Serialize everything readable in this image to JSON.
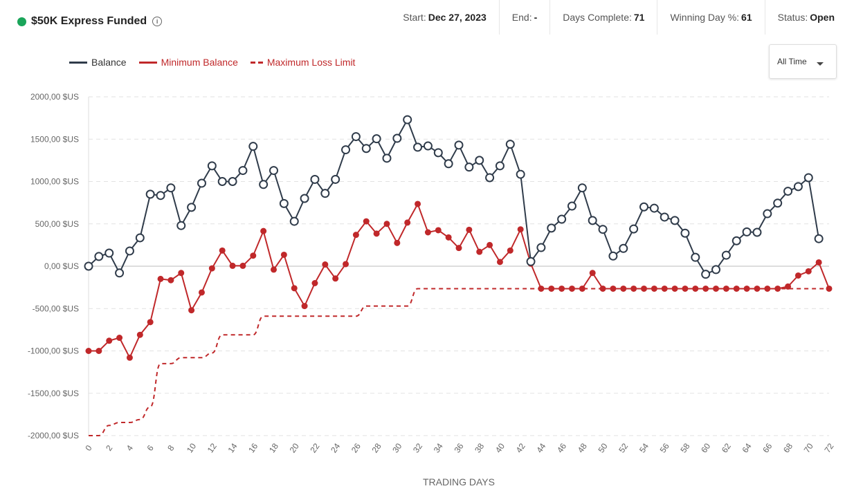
{
  "header": {
    "title": "$50K Express Funded",
    "info_icon": "info-icon",
    "stats": [
      {
        "label": "Start:",
        "value": "Dec 27, 2023"
      },
      {
        "label": "End:",
        "value": "-"
      },
      {
        "label": "Days Complete:",
        "value": "71"
      },
      {
        "label": "Winning Day %:",
        "value": "61"
      },
      {
        "label": "Status:",
        "value": "Open"
      }
    ],
    "status_color": "#1aa55a"
  },
  "range_select": {
    "selected": "All Time"
  },
  "chart_data": {
    "type": "line",
    "xlabel": "TRADING DAYS",
    "ylabel": "",
    "ylim": [
      -2000,
      2000
    ],
    "xlim": [
      0,
      72
    ],
    "yticks": [
      2000,
      1500,
      1000,
      500,
      0,
      -500,
      -1000,
      -1500,
      -2000
    ],
    "ytick_labels": [
      "2000,00 $US",
      "1500,00 $US",
      "1000,00 $US",
      "500,00 $US",
      "0,00 $US",
      "-500,00 $US",
      "-1000,00 $US",
      "-1500,00 $US",
      "-2000,00 $US"
    ],
    "xticks": [
      0,
      2,
      4,
      6,
      8,
      10,
      12,
      14,
      16,
      18,
      20,
      22,
      24,
      26,
      28,
      30,
      32,
      34,
      36,
      38,
      40,
      42,
      44,
      46,
      48,
      50,
      52,
      54,
      56,
      58,
      60,
      62,
      64,
      66,
      68,
      70,
      72
    ],
    "xtick_labels": [
      "0",
      "2",
      "4",
      "6",
      "8",
      "10",
      "12",
      "14",
      "16",
      "18",
      "20",
      "22",
      "24",
      "26",
      "28",
      "30",
      "32",
      "34",
      "36",
      "38",
      "40",
      "42",
      "44",
      "46",
      "48",
      "50",
      "52",
      "54",
      "56",
      "58",
      "60",
      "62",
      "64",
      "66",
      "68",
      "70",
      "72"
    ],
    "grid": true,
    "legend_position": "top-left",
    "series": [
      {
        "name": "Balance",
        "color": "#2f3b4a",
        "style": "solid-open-markers",
        "x": [
          0,
          1,
          2,
          3,
          4,
          5,
          6,
          7,
          8,
          9,
          10,
          11,
          12,
          13,
          14,
          15,
          16,
          17,
          18,
          19,
          20,
          21,
          22,
          23,
          24,
          25,
          26,
          27,
          28,
          29,
          30,
          31,
          32,
          33,
          34,
          35,
          36,
          37,
          38,
          39,
          40,
          41,
          42,
          43,
          44,
          45,
          46,
          47,
          48,
          49,
          50,
          51,
          52,
          53,
          54,
          55,
          56,
          57,
          58,
          59,
          60,
          61,
          62,
          63,
          64,
          65,
          66,
          67,
          68,
          69,
          70,
          71
        ],
        "values": [
          0,
          115,
          155,
          -80,
          180,
          335,
          850,
          835,
          925,
          480,
          695,
          980,
          1185,
          1000,
          1000,
          1130,
          1415,
          965,
          1130,
          740,
          530,
          800,
          1025,
          860,
          1025,
          1375,
          1530,
          1390,
          1505,
          1275,
          1510,
          1730,
          1405,
          1420,
          1340,
          1210,
          1430,
          1170,
          1250,
          1045,
          1185,
          1440,
          1085,
          55,
          220,
          450,
          555,
          710,
          925,
          540,
          435,
          120,
          210,
          440,
          700,
          685,
          580,
          540,
          390,
          105,
          -95,
          -40,
          130,
          300,
          405,
          400,
          620,
          745,
          885,
          940,
          1045,
          325
        ]
      },
      {
        "name": "Minimum Balance",
        "color": "#c0282a",
        "style": "solid-filled-markers",
        "x": [
          0,
          1,
          2,
          3,
          4,
          5,
          6,
          7,
          8,
          9,
          10,
          11,
          12,
          13,
          14,
          15,
          16,
          17,
          18,
          19,
          20,
          21,
          22,
          23,
          24,
          25,
          26,
          27,
          28,
          29,
          30,
          31,
          32,
          33,
          34,
          35,
          36,
          37,
          38,
          39,
          40,
          41,
          42,
          43,
          44,
          45,
          46,
          47,
          48,
          49,
          50,
          51,
          52,
          53,
          54,
          55,
          56,
          57,
          58,
          59,
          60,
          61,
          62,
          63,
          64,
          65,
          66,
          67,
          68,
          69,
          70,
          71,
          72
        ],
        "values": [
          -1000,
          -1000,
          -880,
          -845,
          -1080,
          -810,
          -660,
          -150,
          -165,
          -80,
          -520,
          -310,
          -25,
          185,
          5,
          5,
          125,
          415,
          -40,
          135,
          -260,
          -470,
          -200,
          20,
          -145,
          25,
          370,
          530,
          385,
          500,
          275,
          515,
          735,
          400,
          425,
          340,
          215,
          430,
          170,
          250,
          50,
          185,
          435,
          30,
          -265,
          -265,
          -265,
          -265,
          -265,
          -80,
          -265,
          -265,
          -265,
          -265,
          -265,
          -265,
          -265,
          -265,
          -265,
          -265,
          -265,
          -265,
          -265,
          -265,
          -265,
          -265,
          -265,
          -265,
          -240,
          -110,
          -60,
          45,
          -265
        ]
      },
      {
        "name": "Maximum Loss Limit",
        "color": "#c0282a",
        "style": "dashed",
        "x": [
          0,
          1,
          2,
          3,
          4,
          5,
          6,
          7,
          8,
          9,
          10,
          11,
          12,
          13,
          14,
          15,
          16,
          17,
          18,
          19,
          20,
          21,
          22,
          23,
          24,
          25,
          26,
          27,
          28,
          29,
          30,
          31,
          32,
          33,
          34,
          35,
          36,
          37,
          38,
          39,
          40,
          41,
          42,
          43,
          44,
          45,
          46,
          47,
          48,
          49,
          50,
          51,
          52,
          53,
          54,
          55,
          56,
          57,
          58,
          59,
          60,
          61,
          62,
          63,
          64,
          65,
          66,
          67,
          68,
          69,
          70,
          71,
          72
        ],
        "values": [
          -2000,
          -2000,
          -1880,
          -1845,
          -1845,
          -1810,
          -1660,
          -1150,
          -1150,
          -1080,
          -1080,
          -1080,
          -1025,
          -810,
          -810,
          -810,
          -810,
          -590,
          -590,
          -590,
          -590,
          -590,
          -590,
          -590,
          -590,
          -590,
          -590,
          -470,
          -470,
          -470,
          -470,
          -470,
          -265,
          -265,
          -265,
          -265,
          -265,
          -265,
          -265,
          -265,
          -265,
          -265,
          -265,
          -265,
          -265,
          -265,
          -265,
          -265,
          -265,
          -265,
          -265,
          -265,
          -265,
          -265,
          -265,
          -265,
          -265,
          -265,
          -265,
          -265,
          -265,
          -265,
          -265,
          -265,
          -265,
          -265,
          -265,
          -265,
          -265,
          -265,
          -265,
          -265,
          -265
        ]
      }
    ]
  }
}
